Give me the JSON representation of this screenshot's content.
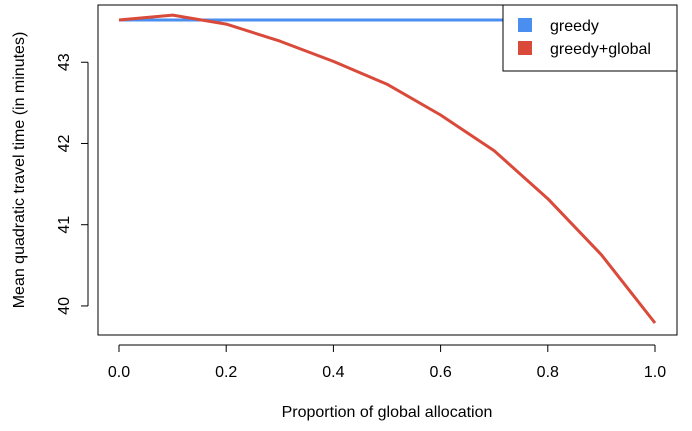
{
  "chart_data": {
    "type": "line",
    "title": "",
    "xlabel": "Proportion of global allocation",
    "ylabel": "Mean quadratic travel time (in minutes)",
    "xlim": [
      0.0,
      1.0
    ],
    "ylim": [
      39.65,
      43.65
    ],
    "xticks": [
      0.0,
      0.2,
      0.4,
      0.6,
      0.8,
      1.0
    ],
    "xtick_labels": [
      "0.0",
      "0.2",
      "0.4",
      "0.6",
      "0.8",
      "1.0"
    ],
    "yticks": [
      40,
      41,
      42,
      43
    ],
    "ytick_labels": [
      "40",
      "41",
      "42",
      "43"
    ],
    "grid": false,
    "legend_position": "top-right",
    "x": [
      0.0,
      0.1,
      0.2,
      0.3,
      0.4,
      0.5,
      0.6,
      0.7,
      0.8,
      0.9,
      1.0
    ],
    "series": [
      {
        "name": "greedy",
        "color": "#4a8ff0",
        "values": [
          43.52,
          43.52,
          43.52,
          43.52,
          43.52,
          43.52,
          43.52,
          43.52,
          43.52,
          43.52,
          43.52
        ]
      },
      {
        "name": "greedy+global",
        "color": "#d94a3a",
        "values": [
          43.52,
          43.58,
          43.47,
          43.26,
          43.01,
          42.73,
          42.35,
          41.91,
          41.32,
          40.63,
          39.79
        ]
      }
    ]
  }
}
